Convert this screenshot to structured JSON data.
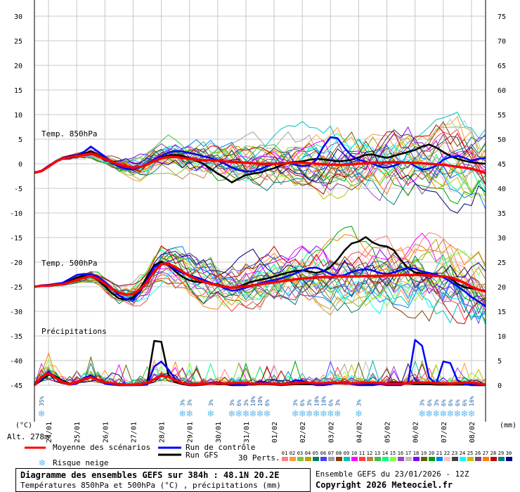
{
  "chart_data": {
    "type": "line",
    "title": "Diagramme des ensembles GEFS sur 384h : 48.1N 20.2E",
    "subtitle": "Températures 850hPa et 500hPa (°C) , précipitations (mm)",
    "left_axis_unit": "(°C)",
    "right_axis_unit": "(mm)",
    "left_ticks": [
      30,
      25,
      20,
      15,
      10,
      5,
      0,
      -5,
      -10,
      -15,
      -20,
      -25,
      -30,
      -35,
      -40,
      -45
    ],
    "right_ticks": [
      75,
      70,
      65,
      60,
      55,
      50,
      45,
      40,
      35,
      30,
      25,
      20,
      15,
      10,
      5,
      0
    ],
    "ylim": [
      -45,
      30
    ],
    "x_labels": [
      "24/01",
      "25/01",
      "26/01",
      "27/01",
      "28/01",
      "29/01",
      "30/01",
      "31/01",
      "01/02",
      "02/02",
      "03/02",
      "04/02",
      "05/02",
      "06/02",
      "07/02",
      "08/02"
    ],
    "panel_labels": [
      "Temp. 850hPa",
      "Temp. 500hPa",
      "Précipitations"
    ],
    "altitude": "Alt. 278m",
    "x": [
      0,
      6,
      12,
      18,
      24,
      30,
      36,
      42,
      48,
      54,
      60,
      66,
      72,
      78,
      84,
      90,
      96,
      102,
      108,
      114,
      120,
      126,
      132,
      138,
      144,
      150,
      156,
      162,
      168,
      174,
      180,
      186,
      192,
      198,
      204,
      210,
      216,
      222,
      228,
      234,
      240,
      246,
      252,
      258,
      264,
      270,
      276,
      282,
      288,
      294,
      300,
      306,
      312,
      318,
      324,
      330,
      336,
      342,
      348,
      354,
      360,
      366,
      372,
      378,
      384
    ],
    "series": [
      {
        "name": "Moyenne des scénarios",
        "panel": "850hPa",
        "values": [
          -1.8,
          -1.5,
          -0.6,
          0.4,
          1.1,
          1.3,
          1.6,
          1.8,
          2.1,
          1.6,
          1.0,
          0.4,
          -0.2,
          -0.5,
          -0.8,
          -0.6,
          -0.2,
          0.6,
          1.1,
          1.4,
          1.4,
          1.2,
          1.0,
          0.8,
          0.7,
          0.7,
          0.6,
          0.5,
          0.4,
          0.3,
          0.2,
          0.1,
          0.0,
          0.0,
          0.0,
          0.0,
          0.1,
          0.2,
          0.2,
          0.1,
          0.0,
          -0.1,
          -0.2,
          -0.2,
          -0.2,
          -0.1,
          0.0,
          0.1,
          0.2,
          0.2,
          0.3,
          0.3,
          0.3,
          0.2,
          0.2,
          0.1,
          0.0,
          -0.1,
          -0.2,
          -0.4,
          -0.6,
          -0.8,
          -1.0,
          -1.4,
          -1.9
        ]
      },
      {
        "name": "Run de contrôle",
        "panel": "850hPa",
        "values": [
          -1.8,
          -1.4,
          -0.4,
          0.5,
          1.2,
          1.5,
          1.8,
          2.4,
          3.5,
          2.5,
          1.4,
          0.2,
          -0.6,
          -1.0,
          -1.2,
          -0.7,
          0.0,
          0.9,
          1.6,
          2.3,
          2.6,
          2.5,
          2.2,
          1.9,
          1.5,
          1.2,
          0.6,
          0.0,
          -0.8,
          -1.3,
          -1.6,
          -1.5,
          -1.1,
          -0.5,
          0.0,
          0.2,
          0.1,
          -0.2,
          -0.5,
          -0.3,
          0.8,
          3.5,
          5.4,
          5.2,
          3.2,
          1.6,
          0.8,
          0.4,
          0.0,
          -0.6,
          -0.8,
          -0.4,
          0.2,
          0.4,
          -0.5,
          -1.2,
          -1.0,
          -0.4,
          0.8,
          1.4,
          1.6,
          1.2,
          0.6,
          1.0,
          1.2
        ]
      },
      {
        "name": "Run GFS",
        "panel": "850hPa",
        "values": [
          -1.8,
          -1.4,
          -0.5,
          0.4,
          1.2,
          1.6,
          1.8,
          2.0,
          2.4,
          1.8,
          1.2,
          0.5,
          -0.2,
          -0.6,
          -0.9,
          -0.6,
          -0.1,
          0.7,
          1.3,
          1.7,
          1.8,
          1.6,
          1.2,
          0.6,
          0.0,
          -1.0,
          -2.0,
          -2.8,
          -3.8,
          -3.0,
          -2.3,
          -2.0,
          -1.8,
          -1.3,
          -0.9,
          -0.3,
          0.2,
          0.4,
          0.5,
          0.8,
          1.0,
          0.9,
          0.7,
          0.5,
          0.6,
          0.8,
          1.3,
          1.8,
          1.9,
          1.5,
          1.2,
          1.6,
          2.0,
          2.4,
          2.8,
          3.5,
          3.9,
          3.3,
          2.4,
          1.6,
          1.0,
          0.6,
          0.3,
          0.1,
          0.0
        ]
      },
      {
        "name": "Moyenne des scénarios",
        "panel": "500hPa",
        "values": [
          -25.0,
          -24.8,
          -24.8,
          -24.6,
          -24.5,
          -24.1,
          -23.6,
          -23.2,
          -22.8,
          -23.4,
          -24.4,
          -25.4,
          -26.2,
          -26.6,
          -26.5,
          -25.5,
          -24.0,
          -21.9,
          -20.4,
          -20.3,
          -21.0,
          -21.9,
          -22.8,
          -23.5,
          -24.0,
          -24.4,
          -24.7,
          -25.0,
          -25.2,
          -25.1,
          -24.9,
          -24.7,
          -24.5,
          -24.3,
          -24.1,
          -23.9,
          -23.7,
          -23.5,
          -23.3,
          -23.2,
          -23.1,
          -23.0,
          -23.0,
          -22.9,
          -22.9,
          -22.9,
          -22.9,
          -22.8,
          -22.8,
          -22.8,
          -22.7,
          -22.7,
          -22.6,
          -22.6,
          -22.6,
          -22.6,
          -22.7,
          -22.8,
          -22.9,
          -23.1,
          -23.6,
          -24.2,
          -25.0,
          -25.6,
          -26.0
        ]
      },
      {
        "name": "Run de contrôle",
        "panel": "500hPa",
        "values": [
          -25.0,
          -24.7,
          -24.6,
          -24.4,
          -24.2,
          -23.4,
          -22.6,
          -22.4,
          -22.5,
          -23.0,
          -24.0,
          -25.3,
          -26.8,
          -27.5,
          -27.6,
          -26.0,
          -23.5,
          -21.0,
          -20.3,
          -20.6,
          -21.5,
          -22.2,
          -22.7,
          -23.1,
          -23.6,
          -24.2,
          -24.7,
          -25.3,
          -25.8,
          -25.6,
          -25.2,
          -24.8,
          -24.3,
          -23.9,
          -23.6,
          -23.3,
          -22.8,
          -22.3,
          -21.7,
          -21.2,
          -21.1,
          -21.7,
          -22.4,
          -22.8,
          -22.6,
          -22.0,
          -21.6,
          -21.4,
          -21.7,
          -22.2,
          -22.4,
          -22.1,
          -21.6,
          -21.2,
          -21.3,
          -21.9,
          -22.2,
          -22.5,
          -23.1,
          -23.9,
          -24.9,
          -25.9,
          -27.1,
          -28.0,
          -29.0
        ]
      },
      {
        "name": "Run GFS",
        "panel": "500hPa",
        "values": [
          -25.0,
          -24.8,
          -24.7,
          -24.6,
          -24.4,
          -23.8,
          -23.1,
          -22.8,
          -22.9,
          -23.6,
          -24.9,
          -26.3,
          -27.4,
          -27.6,
          -27.2,
          -25.4,
          -22.9,
          -20.6,
          -19.9,
          -20.6,
          -21.9,
          -23.0,
          -23.7,
          -24.0,
          -24.1,
          -24.3,
          -24.5,
          -24.9,
          -25.3,
          -25.0,
          -24.4,
          -23.9,
          -23.6,
          -23.3,
          -22.9,
          -22.5,
          -22.1,
          -21.8,
          -21.7,
          -21.9,
          -22.2,
          -21.8,
          -21.0,
          -19.5,
          -17.6,
          -16.2,
          -15.8,
          -14.9,
          -16.0,
          -16.6,
          -16.8,
          -17.6,
          -19.6,
          -21.2,
          -22.1,
          -22.3,
          -22.6,
          -22.9,
          -22.8,
          -23.3,
          -24.4,
          -25.1,
          -25.3,
          -25.6,
          -25.8
        ]
      },
      {
        "name": "Moyenne des scénarios",
        "panel": "precip",
        "values": [
          0.0,
          1.6,
          2.4,
          1.5,
          0.6,
          0.2,
          0.6,
          1.2,
          1.6,
          1.1,
          0.6,
          0.4,
          0.2,
          0.1,
          0.1,
          0.2,
          0.5,
          1.2,
          1.9,
          1.7,
          1.0,
          0.4,
          0.2,
          0.2,
          0.3,
          0.3,
          0.4,
          0.3,
          0.4,
          0.5,
          0.4,
          0.3,
          0.3,
          0.3,
          0.3,
          0.2,
          0.3,
          0.4,
          0.5,
          0.5,
          0.4,
          0.4,
          0.5,
          0.5,
          0.4,
          0.4,
          0.4,
          0.5,
          0.5,
          0.4,
          0.3,
          0.3,
          0.3,
          0.4,
          0.5,
          0.5,
          0.5,
          0.4,
          0.4,
          0.3,
          0.4,
          0.5,
          0.5,
          0.3,
          0.1
        ]
      },
      {
        "name": "Run de contrôle",
        "panel": "precip",
        "values": [
          0.0,
          1.2,
          2.8,
          1.4,
          0.5,
          0.1,
          0.3,
          1.4,
          2.0,
          1.2,
          0.3,
          0.1,
          0.0,
          0.0,
          0.0,
          0.0,
          0.1,
          3.8,
          4.8,
          3.2,
          1.2,
          0.3,
          0.0,
          0.0,
          0.3,
          0.5,
          0.6,
          0.4,
          0.2,
          0.0,
          0.0,
          0.3,
          0.8,
          0.5,
          0.2,
          0.0,
          0.3,
          1.0,
          0.9,
          0.4,
          0.0,
          0.0,
          0.2,
          0.5,
          0.6,
          0.2,
          0.0,
          0.0,
          0.0,
          0.2,
          0.0,
          0.0,
          0.0,
          0.6,
          9.2,
          8.0,
          1.5,
          0.3,
          4.8,
          4.5,
          1.0,
          0.2,
          0.0,
          0.0,
          0.0
        ]
      },
      {
        "name": "Run GFS",
        "panel": "precip",
        "values": [
          0.0,
          1.0,
          2.1,
          1.8,
          0.9,
          0.3,
          0.5,
          1.3,
          2.0,
          1.0,
          0.4,
          0.2,
          0.0,
          0.0,
          0.0,
          0.1,
          0.4,
          9.0,
          8.8,
          2.1,
          0.6,
          0.2,
          0.0,
          0.0,
          0.1,
          0.3,
          0.2,
          0.2,
          0.0,
          0.0,
          0.1,
          0.1,
          0.2,
          0.2,
          0.1,
          0.0,
          0.1,
          0.2,
          0.2,
          0.2,
          0.1,
          0.2,
          0.3,
          0.4,
          0.3,
          0.3,
          0.2,
          0.2,
          0.3,
          0.3,
          0.4,
          0.6,
          0.5,
          0.3,
          0.2,
          0.2,
          0.2,
          0.1,
          0.1,
          0.1,
          0.1,
          0.1,
          0.1,
          0.0,
          0.0
        ]
      }
    ],
    "ensemble_members": 30,
    "snow_risk_markers": [
      {
        "x": 6,
        "label": "35%"
      },
      {
        "x": 126,
        "label": "3%"
      },
      {
        "x": 132,
        "label": "3%"
      },
      {
        "x": 150,
        "label": "3%"
      },
      {
        "x": 168,
        "label": "3%"
      },
      {
        "x": 174,
        "label": "6%"
      },
      {
        "x": 180,
        "label": "3%"
      },
      {
        "x": 186,
        "label": "10%"
      },
      {
        "x": 192,
        "label": "10%"
      },
      {
        "x": 198,
        "label": "6%"
      },
      {
        "x": 222,
        "label": "3%"
      },
      {
        "x": 228,
        "label": "6%"
      },
      {
        "x": 234,
        "label": "3%"
      },
      {
        "x": 240,
        "label": "10%"
      },
      {
        "x": 246,
        "label": "10%"
      },
      {
        "x": 252,
        "label": "6%"
      },
      {
        "x": 258,
        "label": "3%"
      },
      {
        "x": 276,
        "label": "3%"
      },
      {
        "x": 330,
        "label": "3%"
      },
      {
        "x": 336,
        "label": "6%"
      },
      {
        "x": 342,
        "label": "3%"
      },
      {
        "x": 348,
        "label": "6%"
      },
      {
        "x": 354,
        "label": "6%"
      },
      {
        "x": 360,
        "label": "6%"
      },
      {
        "x": 366,
        "label": "6%"
      },
      {
        "x": 372,
        "label": "16%"
      }
    ]
  },
  "legend": {
    "mean": "Moyenne des scénarios",
    "control": "Run de contrôle",
    "gfs": "Run GFS",
    "snow": "Risque neige",
    "perts": "30 Perts.",
    "member_labels": [
      "01",
      "02",
      "03",
      "04",
      "05",
      "06",
      "07",
      "08",
      "09",
      "10",
      "11",
      "12",
      "13",
      "14",
      "15",
      "16",
      "17",
      "18",
      "19",
      "20",
      "21",
      "22",
      "23",
      "24",
      "25",
      "26",
      "27",
      "28",
      "29",
      "30"
    ],
    "member_colors": [
      "#ff8080",
      "#ff9933",
      "#80c040",
      "#c0a000",
      "#008060",
      "#4040ff",
      "#a0a0a0",
      "#804000",
      "#00c0c0",
      "#ff00ff",
      "#ff4040",
      "#c08040",
      "#40c040",
      "#00ff80",
      "#80ff40",
      "#a040c0",
      "#c0c0c0",
      "#8000ff",
      "#606000",
      "#00a000",
      "#0080ff",
      "#ffc0c0",
      "#404040",
      "#00ffff",
      "#c0c000",
      "#804080",
      "#ff8000",
      "#c00000",
      "#008080",
      "#000080"
    ]
  },
  "colors": {
    "mean": "#ff0000",
    "control": "#0000ff",
    "gfs": "#000000",
    "snow": "#66bbee"
  },
  "footer": {
    "title": "Diagramme des ensembles GEFS sur 384h : 48.1N 20.2E",
    "subtitle": "Températures 850hPa et 500hPa (°C) , précipitations (mm)",
    "run": "Ensemble GEFS du 23/01/2026 - 12Z",
    "copyright": "Copyright 2026 Meteociel.fr"
  }
}
